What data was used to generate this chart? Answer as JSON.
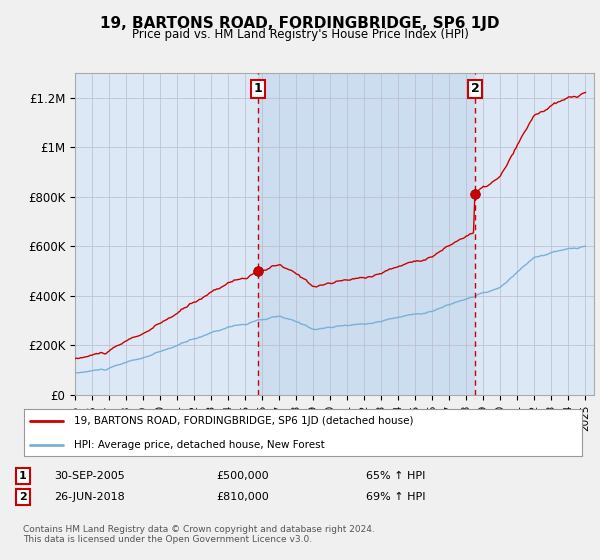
{
  "title": "19, BARTONS ROAD, FORDINGBRIDGE, SP6 1JD",
  "subtitle": "Price paid vs. HM Land Registry's House Price Index (HPI)",
  "background_color": "#f0f4f8",
  "plot_bg_color": "#dce8f5",
  "highlight_color": "#ccddf0",
  "ylim": [
    0,
    1300000
  ],
  "yticks": [
    0,
    200000,
    400000,
    600000,
    800000,
    1000000,
    1200000
  ],
  "ytick_labels": [
    "£0",
    "£200K",
    "£400K",
    "£600K",
    "£800K",
    "£1M",
    "£1.2M"
  ],
  "transaction1": {
    "date_num": 2005.75,
    "price": 500000,
    "label": "1",
    "date_str": "30-SEP-2005",
    "pct": "65% ↑ HPI"
  },
  "transaction2": {
    "date_num": 2018.5,
    "price": 810000,
    "label": "2",
    "date_str": "26-JUN-2018",
    "pct": "69% ↑ HPI"
  },
  "hpi_line_color": "#7ab0d8",
  "price_line_color": "#cc0000",
  "dashed_line_color": "#cc0000",
  "grid_color": "#bbbbcc",
  "xmin": 1995.0,
  "xmax": 2025.5,
  "xticks": [
    1995,
    1996,
    1997,
    1998,
    1999,
    2000,
    2001,
    2002,
    2003,
    2004,
    2005,
    2006,
    2007,
    2008,
    2009,
    2010,
    2011,
    2012,
    2013,
    2014,
    2015,
    2016,
    2017,
    2018,
    2019,
    2020,
    2021,
    2022,
    2023,
    2024,
    2025
  ],
  "legend_line1": "19, BARTONS ROAD, FORDINGBRIDGE, SP6 1JD (detached house)",
  "legend_line2": "HPI: Average price, detached house, New Forest",
  "footer": "Contains HM Land Registry data © Crown copyright and database right 2024.\nThis data is licensed under the Open Government Licence v3.0."
}
